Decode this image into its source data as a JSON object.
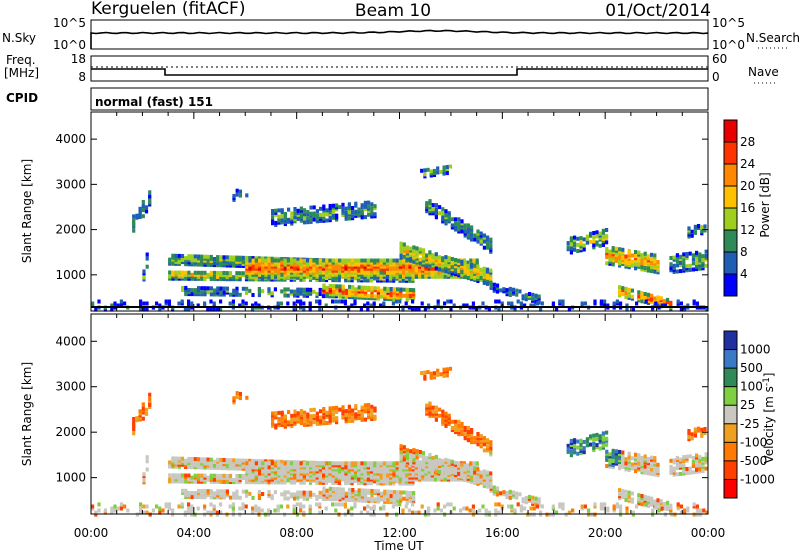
{
  "header": {
    "station": "Kerguelen (fitACF)",
    "beam": "Beam 10",
    "date": "01/Oct/2014"
  },
  "panels": {
    "nsky": {
      "label": "N.Sky",
      "ticks_left": [
        "10^5",
        "10^0"
      ],
      "ticks_right": [
        "10^5",
        "10^0"
      ],
      "right_label": "N.Search"
    },
    "freq": {
      "label_line1": "Freq.",
      "label_line2": "[MHz]",
      "ticks_left": [
        "18",
        "8"
      ],
      "ticks_right": [
        "60",
        "0"
      ],
      "right_label": "Nave"
    },
    "cpid": {
      "label": "CPID",
      "value": "normal (fast) 151"
    }
  },
  "chart_data": [
    {
      "type": "heatmap",
      "name": "power",
      "ylabel": "Slant Range [km]",
      "xlabel": "",
      "ylim": [
        200,
        4600
      ],
      "y_ticks": [
        "1000",
        "2000",
        "3000",
        "4000"
      ],
      "colorbar": {
        "label": "Power [dB]",
        "ticks": [
          "28",
          "24",
          "20",
          "16",
          "12",
          "8",
          "4"
        ],
        "colors": [
          "#e60000",
          "#ff3300",
          "#ff8800",
          "#ffc000",
          "#9ecf1f",
          "#2e8b57",
          "#1f5fb3",
          "#0000ff"
        ]
      }
    },
    {
      "type": "heatmap",
      "name": "velocity",
      "ylabel": "Slant Range [km]",
      "xlabel": "Time UT",
      "ylim": [
        200,
        4600
      ],
      "y_ticks": [
        "1000",
        "2000",
        "3000",
        "4000"
      ],
      "x_ticks": [
        "00:00",
        "04:00",
        "08:00",
        "12:00",
        "16:00",
        "20:00",
        "00:00"
      ],
      "colorbar": {
        "label": "Velocity [m s",
        "label_sup": "-1",
        "ticks": [
          "1000",
          "500",
          "100",
          "25",
          "-25",
          "-100",
          "-500",
          "-1000"
        ],
        "colors": [
          "#2030a0",
          "#3a78c8",
          "#2e8b57",
          "#7fd040",
          "#c8c8c0",
          "#f0a020",
          "#ff7a00",
          "#ff4000",
          "#ff0000"
        ]
      }
    }
  ]
}
